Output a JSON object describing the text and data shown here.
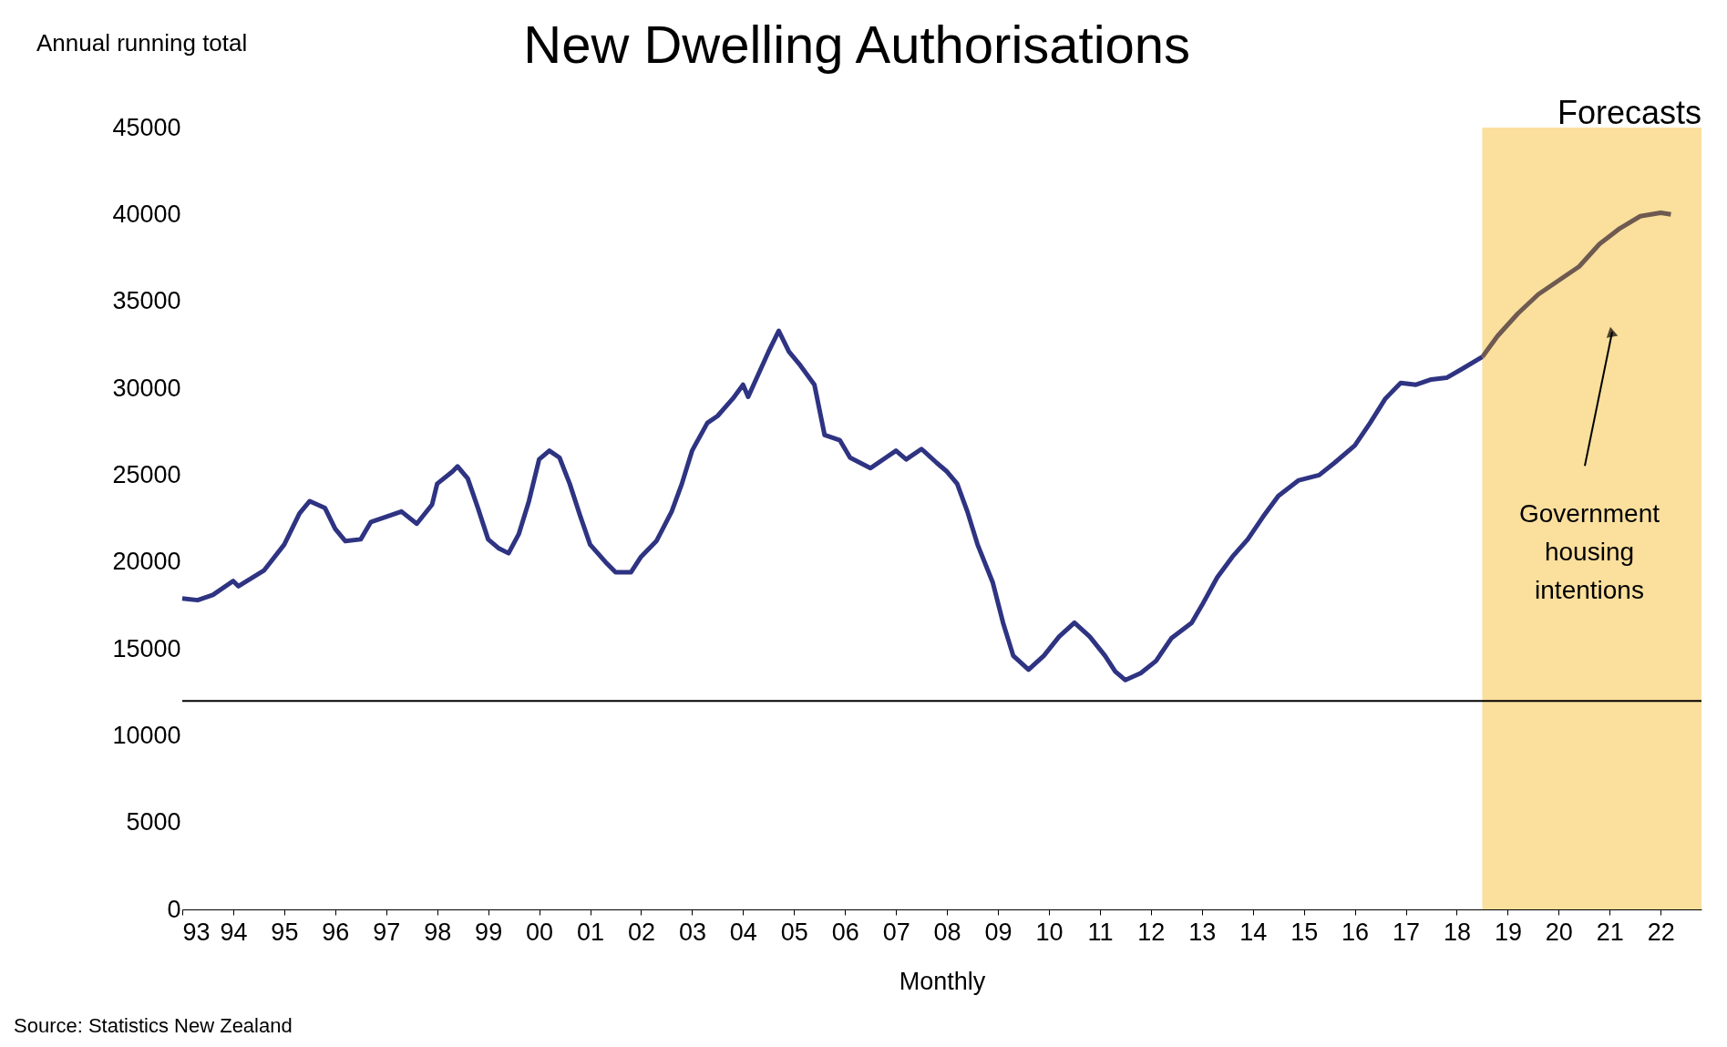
{
  "chart_data": {
    "type": "line",
    "title": "New Dwelling Authorisations",
    "ylabel": "Annual running total",
    "xlabel": "Monthly",
    "xlim": [
      1993,
      2022.8
    ],
    "ylim": [
      0,
      45000
    ],
    "xticks": [
      {
        "value": 1993,
        "label": "93"
      },
      {
        "value": 1994,
        "label": "94"
      },
      {
        "value": 1995,
        "label": "95"
      },
      {
        "value": 1996,
        "label": "96"
      },
      {
        "value": 1997,
        "label": "97"
      },
      {
        "value": 1998,
        "label": "98"
      },
      {
        "value": 1999,
        "label": "99"
      },
      {
        "value": 2000,
        "label": "00"
      },
      {
        "value": 2001,
        "label": "01"
      },
      {
        "value": 2002,
        "label": "02"
      },
      {
        "value": 2003,
        "label": "03"
      },
      {
        "value": 2004,
        "label": "04"
      },
      {
        "value": 2005,
        "label": "05"
      },
      {
        "value": 2006,
        "label": "06"
      },
      {
        "value": 2007,
        "label": "07"
      },
      {
        "value": 2008,
        "label": "08"
      },
      {
        "value": 2009,
        "label": "09"
      },
      {
        "value": 2010,
        "label": "10"
      },
      {
        "value": 2011,
        "label": "11"
      },
      {
        "value": 2012,
        "label": "12"
      },
      {
        "value": 2013,
        "label": "13"
      },
      {
        "value": 2014,
        "label": "14"
      },
      {
        "value": 2015,
        "label": "15"
      },
      {
        "value": 2016,
        "label": "16"
      },
      {
        "value": 2017,
        "label": "17"
      },
      {
        "value": 2018,
        "label": "18"
      },
      {
        "value": 2019,
        "label": "19"
      },
      {
        "value": 2020,
        "label": "20"
      },
      {
        "value": 2021,
        "label": "21"
      },
      {
        "value": 2022,
        "label": "22"
      }
    ],
    "yticks": [
      0,
      5000,
      10000,
      15000,
      20000,
      25000,
      30000,
      35000,
      40000,
      45000
    ],
    "grid": false,
    "line_style": "solid",
    "marker": "none",
    "series": [
      {
        "color": "#2e3382",
        "x": [
          1993.0,
          1993.3,
          1993.6,
          1994.0,
          1994.1,
          1994.6,
          1995.0,
          1995.3,
          1995.5,
          1995.8,
          1996.0,
          1996.2,
          1996.5,
          1996.7,
          1997.0,
          1997.3,
          1997.6,
          1997.9,
          1998.0,
          1998.3,
          1998.4,
          1998.6,
          1998.8,
          1999.0,
          1999.2,
          1999.4,
          1999.6,
          1999.8,
          2000.0,
          2000.2,
          2000.4,
          2000.6,
          2000.8,
          2001.0,
          2001.3,
          2001.5,
          2001.8,
          2002.0,
          2002.3,
          2002.6,
          2002.8,
          2003.0,
          2003.3,
          2003.5,
          2003.8,
          2004.0,
          2004.1,
          2004.3,
          2004.5,
          2004.7,
          2004.9,
          2005.1,
          2005.4,
          2005.6,
          2005.9,
          2006.1,
          2006.3,
          2006.5,
          2006.8,
          2007.0,
          2007.2,
          2007.5,
          2007.8,
          2008.0,
          2008.2,
          2008.4,
          2008.6,
          2008.9,
          2009.1,
          2009.3,
          2009.6,
          2009.9,
          2010.2,
          2010.5,
          2010.8,
          2011.1,
          2011.3,
          2011.5,
          2011.8,
          2012.1,
          2012.4,
          2012.8,
          2013.0,
          2013.3,
          2013.6,
          2013.9,
          2014.2,
          2014.5,
          2014.9,
          2015.3,
          2015.6,
          2016.0,
          2016.3,
          2016.6,
          2016.9,
          2017.2,
          2017.5,
          2017.8,
          2018.1,
          2018.5
        ],
        "values": [
          17900,
          17800,
          18100,
          18900,
          18600,
          19500,
          21000,
          22800,
          23500,
          23100,
          21900,
          21200,
          21300,
          22300,
          22600,
          22900,
          22200,
          23300,
          24500,
          25200,
          25500,
          24800,
          23100,
          21300,
          20800,
          20500,
          21600,
          23500,
          25900,
          26400,
          26000,
          24500,
          22700,
          21000,
          20000,
          19400,
          19400,
          20300,
          21200,
          22900,
          24500,
          26400,
          28000,
          28400,
          29400,
          30200,
          29500,
          30800,
          32100,
          33300,
          32100,
          31400,
          30200,
          27300,
          27000,
          26000,
          25700,
          25400,
          26000,
          26400,
          25900,
          26500,
          25700,
          25200,
          24500,
          22900,
          21000,
          18800,
          16500,
          14600,
          13800,
          14600,
          15700,
          16500,
          15700,
          14600,
          13700,
          13200,
          13600,
          14300,
          15600,
          16500,
          17500,
          19100,
          20300,
          21300,
          22600,
          23800,
          24700,
          25000,
          25700,
          26700,
          28000,
          29400,
          30300,
          30200,
          30500,
          30600,
          31100,
          31800
        ]
      },
      {
        "color": "#6e5a50",
        "x": [
          2018.5,
          2018.8,
          2019.2,
          2019.6,
          2020.0,
          2020.4,
          2020.8,
          2021.2,
          2021.6,
          2022.0,
          2022.2
        ],
        "values": [
          31800,
          33000,
          34300,
          35400,
          36200,
          37000,
          38300,
          39200,
          39900,
          40100,
          40000
        ]
      }
    ],
    "ref_lines": [
      {
        "axis": "y",
        "value": 12000,
        "color": "#000000"
      }
    ],
    "bands": [
      {
        "axis": "x",
        "from": 2018.5,
        "to": 2022.8,
        "label": "Forecasts",
        "color": "#fadf9d"
      }
    ],
    "annotations": [
      "Government housing intentions",
      "Source: Statistics New Zealand"
    ]
  }
}
